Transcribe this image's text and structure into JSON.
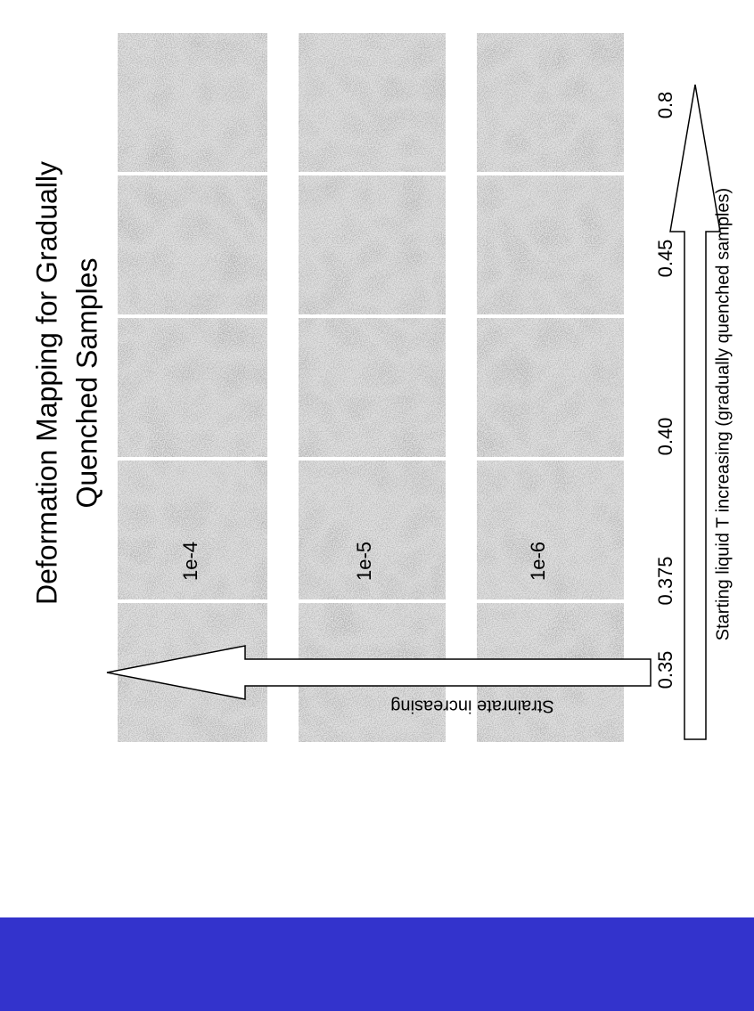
{
  "slide": {
    "title_lines": [
      "Deformation Mapping for Gradually",
      "Quenched Samples"
    ],
    "row_labels": [
      "1e-4",
      "1e-5",
      "1e-6"
    ],
    "column_labels": [
      "0.35",
      "0.375",
      "0.40",
      "0.45",
      "0.8"
    ],
    "horizontal_arrow_label": "Starting liquid T increasing (gradually quenched samples)",
    "vertical_arrow_label": "Strainrate increasing"
  }
}
